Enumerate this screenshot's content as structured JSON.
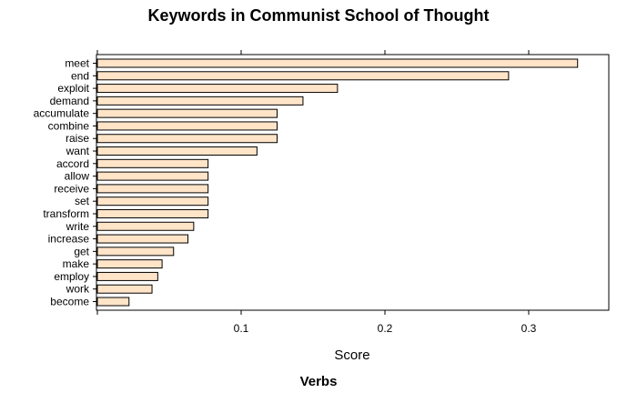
{
  "chart_data": {
    "type": "bar",
    "orientation": "horizontal",
    "title": "Keywords in Communist School of Thought",
    "subtitle": "Verbs",
    "xlabel": "Score",
    "ylabel": "",
    "xlim": [
      0,
      0.35
    ],
    "xticks": [
      0.1,
      0.2,
      0.3
    ],
    "xtick_labels": [
      "0.1",
      "0.2",
      "0.3"
    ],
    "grid": false,
    "bar_color": "#ffe4c8",
    "bar_edge_color": "#000000",
    "categories": [
      "meet",
      "end",
      "exploit",
      "demand",
      "accumulate",
      "combine",
      "raise",
      "want",
      "accord",
      "allow",
      "receive",
      "set",
      "transform",
      "write",
      "increase",
      "get",
      "make",
      "employ",
      "work",
      "become"
    ],
    "values": [
      0.334,
      0.286,
      0.167,
      0.143,
      0.125,
      0.125,
      0.125,
      0.111,
      0.077,
      0.077,
      0.077,
      0.077,
      0.077,
      0.067,
      0.063,
      0.053,
      0.045,
      0.042,
      0.038,
      0.022
    ]
  }
}
